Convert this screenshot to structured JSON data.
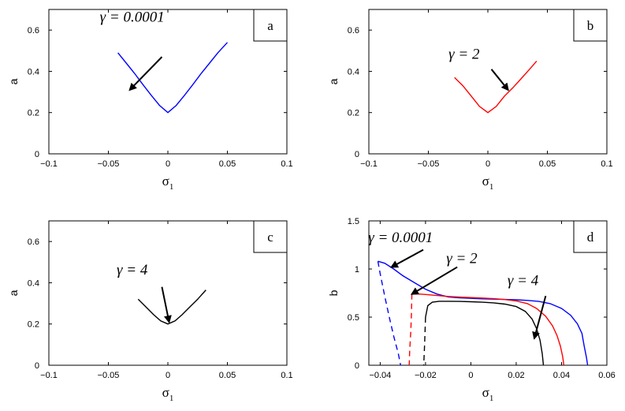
{
  "chart_data": [
    {
      "type": "line",
      "panel_label": "a",
      "xlabel": "σ",
      "xlabel_sub": "1",
      "ylabel": "a",
      "xlim": [
        -0.1,
        0.1
      ],
      "ylim": [
        0,
        0.7
      ],
      "xticks": [
        -0.1,
        -0.05,
        0,
        0.05,
        0.1
      ],
      "xtick_labels": [
        "−0.1",
        "−0.05",
        "0",
        "0.05",
        "0.1"
      ],
      "yticks": [
        0,
        0.2,
        0.4,
        0.6
      ],
      "ytick_labels": [
        "0",
        "0.2",
        "0.4",
        "0.6"
      ],
      "series": [
        {
          "color": "#0000ff",
          "style": "solid",
          "x": [
            -0.042,
            -0.035,
            -0.028,
            -0.021,
            -0.014,
            -0.007,
            0,
            0.007,
            0.014,
            0.021,
            0.028,
            0.035,
            0.042,
            0.05
          ],
          "y": [
            0.49,
            0.44,
            0.39,
            0.336,
            0.284,
            0.235,
            0.2,
            0.235,
            0.284,
            0.336,
            0.39,
            0.44,
            0.49,
            0.54
          ]
        }
      ],
      "annotations": [
        {
          "text": "γ = 0.0001",
          "at": [
            -0.03,
            0.64
          ],
          "arrow_from": [
            -0.005,
            0.47
          ],
          "arrow_to": [
            -0.032,
            0.31
          ]
        }
      ]
    },
    {
      "type": "line",
      "panel_label": "b",
      "xlabel": "σ",
      "xlabel_sub": "1",
      "ylabel": "a",
      "xlim": [
        -0.1,
        0.1
      ],
      "ylim": [
        0,
        0.7
      ],
      "xticks": [
        -0.1,
        -0.05,
        0,
        0.05,
        0.1
      ],
      "xtick_labels": [
        "−0.1",
        "−0.05",
        "0",
        "0.05",
        "0.1"
      ],
      "yticks": [
        0,
        0.2,
        0.4,
        0.6
      ],
      "ytick_labels": [
        "0",
        "0.2",
        "0.4",
        "0.6"
      ],
      "series": [
        {
          "color": "#ff0000",
          "style": "solid",
          "x": [
            -0.028,
            -0.021,
            -0.014,
            -0.007,
            0,
            0.007,
            0.014,
            0.021,
            0.028,
            0.035,
            0.041
          ],
          "y": [
            0.37,
            0.33,
            0.28,
            0.23,
            0.2,
            0.23,
            0.28,
            0.32,
            0.365,
            0.41,
            0.45
          ]
        }
      ],
      "annotations": [
        {
          "text": "γ = 2",
          "at": [
            -0.02,
            0.46
          ],
          "arrow_from": [
            0.003,
            0.41
          ],
          "arrow_to": [
            0.017,
            0.31
          ]
        }
      ]
    },
    {
      "type": "line",
      "panel_label": "c",
      "xlabel": "σ",
      "xlabel_sub": "1",
      "ylabel": "a",
      "xlim": [
        -0.1,
        0.1
      ],
      "ylim": [
        0,
        0.7
      ],
      "xticks": [
        -0.1,
        -0.05,
        0,
        0.05,
        0.1
      ],
      "xtick_labels": [
        "−0.1",
        "−0.05",
        "0",
        "0.05",
        "0.1"
      ],
      "yticks": [
        0,
        0.2,
        0.4,
        0.6
      ],
      "ytick_labels": [
        "0",
        "0.2",
        "0.4",
        "0.6"
      ],
      "series": [
        {
          "color": "#000000",
          "style": "solid",
          "x": [
            -0.025,
            -0.018,
            -0.012,
            -0.006,
            0,
            0.006,
            0.012,
            0.018,
            0.025,
            0.032
          ],
          "y": [
            0.32,
            0.28,
            0.245,
            0.215,
            0.2,
            0.215,
            0.245,
            0.28,
            0.32,
            0.365
          ]
        }
      ],
      "annotations": [
        {
          "text": "γ = 4",
          "at": [
            -0.03,
            0.44
          ],
          "arrow_from": [
            -0.005,
            0.38
          ],
          "arrow_to": [
            0.001,
            0.21
          ]
        }
      ]
    },
    {
      "type": "line",
      "panel_label": "d",
      "xlabel": "σ",
      "xlabel_sub": "1",
      "ylabel": "b",
      "xlim": [
        -0.045,
        0.06
      ],
      "ylim": [
        0,
        1.5
      ],
      "xticks": [
        -0.04,
        -0.02,
        0,
        0.02,
        0.04,
        0.06
      ],
      "xtick_labels": [
        "−0.04",
        "−0.02",
        "0",
        "0.02",
        "0.04",
        "0.06"
      ],
      "yticks": [
        0,
        0.5,
        1,
        1.5
      ],
      "ytick_labels": [
        "0",
        "0.5",
        "1",
        "1.5"
      ],
      "series": [
        {
          "color": "#0000ff",
          "style": "solid",
          "x": [
            -0.041,
            -0.038,
            -0.034,
            -0.03,
            -0.025,
            -0.02,
            -0.015,
            -0.01,
            -0.005,
            0,
            0.005,
            0.01,
            0.015,
            0.02,
            0.025,
            0.03,
            0.035,
            0.04,
            0.044,
            0.047,
            0.049,
            0.05,
            0.051,
            0.0515
          ],
          "y": [
            1.08,
            1.06,
            1.0,
            0.93,
            0.86,
            0.79,
            0.74,
            0.71,
            0.7,
            0.695,
            0.69,
            0.687,
            0.684,
            0.68,
            0.674,
            0.663,
            0.64,
            0.59,
            0.52,
            0.43,
            0.33,
            0.2,
            0.08,
            0.0
          ]
        },
        {
          "color": "#0000ff",
          "style": "dashed",
          "x": [
            -0.041,
            -0.04,
            -0.038,
            -0.036,
            -0.034,
            -0.032,
            -0.031
          ],
          "y": [
            1.08,
            0.95,
            0.72,
            0.5,
            0.3,
            0.12,
            0.0
          ]
        },
        {
          "color": "#ff0000",
          "style": "solid",
          "x": [
            -0.026,
            -0.023,
            -0.02,
            -0.015,
            -0.01,
            -0.005,
            0,
            0.005,
            0.01,
            0.015,
            0.02,
            0.025,
            0.029,
            0.033,
            0.036,
            0.038,
            0.0395,
            0.0405,
            0.041
          ],
          "y": [
            0.74,
            0.74,
            0.735,
            0.725,
            0.715,
            0.708,
            0.703,
            0.698,
            0.692,
            0.683,
            0.668,
            0.64,
            0.59,
            0.51,
            0.41,
            0.31,
            0.2,
            0.09,
            0.0
          ]
        },
        {
          "color": "#ff0000",
          "style": "dashed",
          "x": [
            -0.026,
            -0.0262,
            -0.0265,
            -0.027,
            -0.0272
          ],
          "y": [
            0.74,
            0.55,
            0.35,
            0.15,
            0.0
          ]
        },
        {
          "color": "#000000",
          "style": "solid",
          "x": [
            -0.02,
            -0.019,
            -0.017,
            -0.014,
            -0.01,
            -0.005,
            0,
            0.005,
            0.01,
            0.015,
            0.02,
            0.024,
            0.027,
            0.029,
            0.0305,
            0.0315,
            0.032
          ],
          "y": [
            0.5,
            0.62,
            0.655,
            0.665,
            0.665,
            0.663,
            0.66,
            0.655,
            0.648,
            0.635,
            0.61,
            0.56,
            0.48,
            0.38,
            0.26,
            0.12,
            0.0
          ]
        },
        {
          "color": "#000000",
          "style": "dashed",
          "x": [
            -0.02,
            -0.0202,
            -0.0205,
            -0.0208
          ],
          "y": [
            0.5,
            0.35,
            0.17,
            0.0
          ]
        }
      ],
      "annotations": [
        {
          "text": "γ = 0.0001",
          "at": [
            -0.031,
            1.28
          ],
          "arrow_from": [
            -0.021,
            1.2
          ],
          "arrow_to": [
            -0.035,
            1.02
          ]
        },
        {
          "text": "γ = 2",
          "at": [
            -0.004,
            1.06
          ],
          "arrow_from": [
            -0.006,
            1.02
          ],
          "arrow_to": [
            -0.026,
            0.74
          ]
        },
        {
          "text": "γ = 4",
          "at": [
            0.023,
            0.83
          ],
          "arrow_from": [
            0.033,
            0.72
          ],
          "arrow_to": [
            0.028,
            0.28
          ]
        }
      ]
    }
  ]
}
